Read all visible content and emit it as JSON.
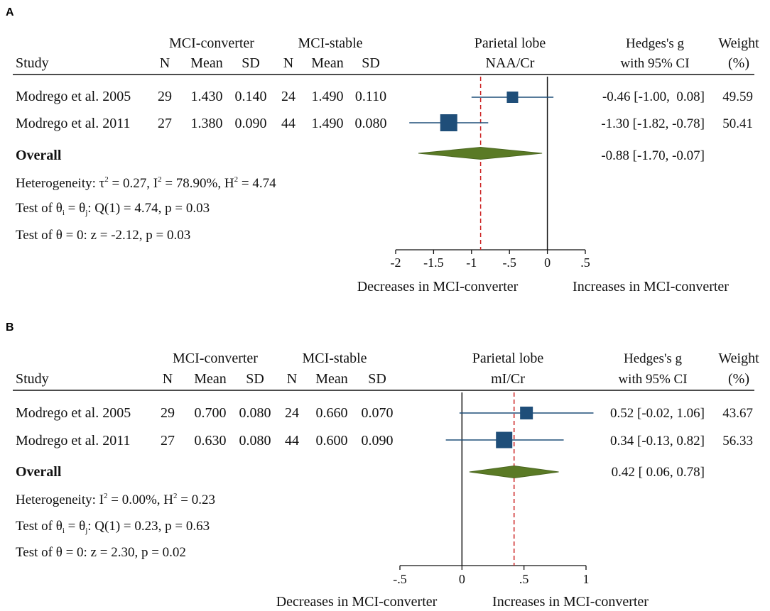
{
  "chart_data": [
    {
      "type": "forest",
      "panel_label": "A",
      "group_headers": {
        "left": "MCI-converter",
        "right": "MCI-stable"
      },
      "columns": {
        "study": "Study",
        "n": "N",
        "mean": "Mean",
        "sd": "SD"
      },
      "plot_title": [
        "Parietal lobe",
        "NAA/Cr"
      ],
      "effect_header": [
        "Hedges's g",
        "with 95% CI"
      ],
      "weight_header": [
        "Weight",
        "(%)"
      ],
      "studies": [
        {
          "name": "Modrego et al. 2005",
          "conv_n": "29",
          "conv_mean": "1.430",
          "conv_sd": "0.140",
          "stab_n": "24",
          "stab_mean": "1.490",
          "stab_sd": "0.110",
          "g": -0.46,
          "lo": -1.0,
          "hi": 0.08,
          "effect_text": "-0.46 [-1.00,  0.08]",
          "weight": 49.59,
          "weight_text": "49.59"
        },
        {
          "name": "Modrego et al. 2011",
          "conv_n": "27",
          "conv_mean": "1.380",
          "conv_sd": "0.090",
          "stab_n": "44",
          "stab_mean": "1.490",
          "stab_sd": "0.080",
          "g": -1.3,
          "lo": -1.82,
          "hi": -0.78,
          "effect_text": "-1.30 [-1.82, -0.78]",
          "weight": 50.41,
          "weight_text": "50.41"
        }
      ],
      "overall": {
        "label": "Overall",
        "g": -0.88,
        "lo": -1.7,
        "hi": -0.07,
        "effect_text": "-0.88 [-1.70, -0.07]"
      },
      "stats": {
        "heterogeneity": {
          "prefix": "Heterogeneity: ",
          "tau_sym": "τ",
          "sq": "2",
          "tau_val": " = 0.27, ",
          "i_sym": "I",
          "i_val": " = 78.90%, ",
          "h_sym": "H",
          "h_val": " = 4.74"
        },
        "test1": {
          "p1": "Test of θ",
          "s1": "i",
          "p2": " = θ",
          "s2": "j",
          "p3": ": Q(1) = 4.74, p = 0.03"
        },
        "test2": "Test of θ = 0: z = -2.12, p = 0.03"
      },
      "x_ticks": [
        -2,
        -1.5,
        -1,
        -0.5,
        0,
        0.5
      ],
      "x_tick_labels": [
        "-2",
        "-1.5",
        "-1",
        "-.5",
        "0",
        ".5"
      ],
      "xlim": [
        -2,
        0.5
      ],
      "x_labels": {
        "left": "Decreases in MCI-converter",
        "right": "Increases in MCI-converter"
      },
      "colors": {
        "marker": "#1f4e79",
        "diamond": "#5a7a25",
        "overall_line": "#cc2222"
      }
    },
    {
      "type": "forest",
      "panel_label": "B",
      "group_headers": {
        "left": "MCI-converter",
        "right": "MCI-stable"
      },
      "columns": {
        "study": "Study",
        "n": "N",
        "mean": "Mean",
        "sd": "SD"
      },
      "plot_title": [
        "Parietal lobe",
        "mI/Cr"
      ],
      "effect_header": [
        "Hedges's g",
        "with 95% CI"
      ],
      "weight_header": [
        "Weight",
        "(%)"
      ],
      "studies": [
        {
          "name": "Modrego et al. 2005",
          "conv_n": "29",
          "conv_mean": "0.700",
          "conv_sd": "0.080",
          "stab_n": "24",
          "stab_mean": "0.660",
          "stab_sd": "0.070",
          "g": 0.52,
          "lo": -0.02,
          "hi": 1.06,
          "effect_text": "0.52 [-0.02, 1.06]",
          "weight": 43.67,
          "weight_text": "43.67"
        },
        {
          "name": "Modrego et al. 2011",
          "conv_n": "27",
          "conv_mean": "0.630",
          "conv_sd": "0.080",
          "stab_n": "44",
          "stab_mean": "0.600",
          "stab_sd": "0.090",
          "g": 0.34,
          "lo": -0.13,
          "hi": 0.82,
          "effect_text": "0.34 [-0.13, 0.82]",
          "weight": 56.33,
          "weight_text": "56.33"
        }
      ],
      "overall": {
        "label": "Overall",
        "g": 0.42,
        "lo": 0.06,
        "hi": 0.78,
        "effect_text": "0.42 [ 0.06, 0.78]"
      },
      "stats": {
        "heterogeneity": {
          "prefix": "Heterogeneity: ",
          "i_sym": "I",
          "sq": "2",
          "i_val": " = 0.00%, ",
          "h_sym": "H",
          "h_val": " = 0.23"
        },
        "test1": {
          "p1": "Test of θ",
          "s1": "i",
          "p2": " = θ",
          "s2": "j",
          "p3": ": Q(1) = 0.23, p = 0.63"
        },
        "test2": "Test of θ = 0: z = 2.30, p = 0.02"
      },
      "x_ticks": [
        -0.5,
        0,
        0.5,
        1
      ],
      "x_tick_labels": [
        "-.5",
        "0",
        ".5",
        "1"
      ],
      "xlim": [
        -0.5,
        1
      ],
      "x_labels": {
        "left": "Decreases in MCI-converter",
        "right": "Increases in MCI-converter"
      },
      "colors": {
        "marker": "#1f4e79",
        "diamond": "#5a7a25",
        "overall_line": "#cc2222"
      }
    }
  ]
}
